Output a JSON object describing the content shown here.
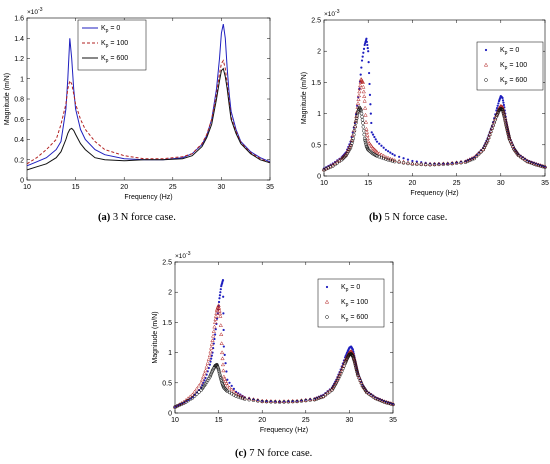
{
  "captions": [
    {
      "letter": "(a)",
      "text": "3 N force case."
    },
    {
      "letter": "(b)",
      "text": "5 N force case."
    },
    {
      "letter": "(c)",
      "text": "7 N force case."
    }
  ],
  "chart_data": [
    {
      "type": "line",
      "title": "",
      "xlabel": "Frequency (Hz)",
      "ylabel": "Magnitude (m/N)",
      "y_multiplier": "×10-3",
      "xlim": [
        10,
        35
      ],
      "ylim": [
        0,
        1.6
      ],
      "xticks": [
        10,
        15,
        20,
        25,
        30,
        35
      ],
      "yticks": [
        0,
        0.2,
        0.4,
        0.6,
        0.8,
        1,
        1.2,
        1.4,
        1.6
      ],
      "grid": false,
      "legend_position": "top-left",
      "series": [
        {
          "name": "Kp = 0",
          "color": "#1f1fbf",
          "style": "solid",
          "x": [
            10,
            11,
            12,
            13,
            13.5,
            14,
            14.2,
            14.4,
            14.6,
            14.8,
            15,
            15.5,
            16,
            17,
            18,
            20,
            22,
            24,
            26,
            27,
            28,
            28.5,
            29,
            29.5,
            29.8,
            30,
            30.2,
            30.4,
            30.6,
            30.8,
            31,
            31.5,
            32,
            33,
            34,
            35
          ],
          "y": [
            0.14,
            0.18,
            0.22,
            0.3,
            0.38,
            0.7,
            1.0,
            1.4,
            1.2,
            0.9,
            0.7,
            0.5,
            0.4,
            0.3,
            0.25,
            0.21,
            0.2,
            0.2,
            0.22,
            0.26,
            0.35,
            0.44,
            0.6,
            0.9,
            1.2,
            1.45,
            1.54,
            1.4,
            1.1,
            0.85,
            0.68,
            0.5,
            0.38,
            0.28,
            0.22,
            0.18
          ]
        },
        {
          "name": "Kp = 100",
          "color": "#b22020",
          "style": "dashed",
          "x": [
            10,
            11,
            12,
            13,
            13.5,
            14,
            14.2,
            14.4,
            14.6,
            14.8,
            15,
            15.5,
            16,
            17,
            18,
            20,
            22,
            24,
            26,
            27,
            28,
            28.5,
            29,
            29.5,
            29.8,
            30,
            30.2,
            30.4,
            30.6,
            30.8,
            31,
            31.5,
            32,
            33,
            34,
            35
          ],
          "y": [
            0.16,
            0.22,
            0.3,
            0.4,
            0.55,
            0.75,
            0.9,
            0.98,
            0.95,
            0.85,
            0.75,
            0.6,
            0.5,
            0.38,
            0.3,
            0.24,
            0.21,
            0.21,
            0.23,
            0.26,
            0.36,
            0.45,
            0.6,
            0.85,
            1.05,
            1.15,
            1.18,
            1.1,
            0.95,
            0.78,
            0.62,
            0.48,
            0.37,
            0.27,
            0.21,
            0.17
          ]
        },
        {
          "name": "Kp = 600",
          "color": "#111111",
          "style": "solid",
          "x": [
            10,
            11,
            12,
            13,
            13.5,
            14,
            14.2,
            14.4,
            14.6,
            14.8,
            15,
            15.5,
            16,
            17,
            18,
            20,
            22,
            24,
            26,
            27,
            28,
            28.5,
            29,
            29.5,
            29.8,
            30,
            30.2,
            30.4,
            30.6,
            30.8,
            31,
            31.5,
            32,
            33,
            34,
            35
          ],
          "y": [
            0.1,
            0.13,
            0.16,
            0.22,
            0.28,
            0.4,
            0.46,
            0.5,
            0.51,
            0.49,
            0.45,
            0.36,
            0.3,
            0.22,
            0.2,
            0.19,
            0.2,
            0.2,
            0.21,
            0.24,
            0.33,
            0.42,
            0.55,
            0.8,
            0.98,
            1.08,
            1.1,
            1.02,
            0.9,
            0.74,
            0.6,
            0.46,
            0.36,
            0.26,
            0.2,
            0.17
          ]
        }
      ]
    },
    {
      "type": "scatter",
      "title": "",
      "xlabel": "Frequency (Hz)",
      "ylabel": "Magnitude (m/N)",
      "y_multiplier": "×10-3",
      "xlim": [
        10,
        35
      ],
      "ylim": [
        0,
        2.5
      ],
      "xticks": [
        10,
        15,
        20,
        25,
        30,
        35
      ],
      "yticks": [
        0,
        0.5,
        1,
        1.5,
        2,
        2.5
      ],
      "grid": false,
      "legend_position": "top-right",
      "series": [
        {
          "name": "Kp = 0",
          "color": "#1f1fbf",
          "marker": "dot",
          "x": [
            10,
            11,
            12,
            12.5,
            13,
            13.5,
            14,
            14.3,
            14.6,
            14.8,
            15,
            15.2,
            15.4,
            16,
            17,
            18,
            20,
            22,
            24,
            26,
            27,
            28,
            28.5,
            29,
            29.5,
            29.8,
            30,
            30.2,
            30.4,
            30.6,
            30.8,
            31,
            31.5,
            32,
            33,
            34,
            35
          ],
          "y": [
            0.12,
            0.2,
            0.3,
            0.38,
            0.55,
            0.85,
            1.4,
            1.85,
            2.1,
            2.2,
            2.0,
            1.3,
            0.7,
            0.55,
            0.42,
            0.33,
            0.24,
            0.2,
            0.2,
            0.24,
            0.3,
            0.45,
            0.6,
            0.8,
            1.05,
            1.2,
            1.28,
            1.25,
            1.1,
            0.9,
            0.75,
            0.62,
            0.45,
            0.35,
            0.25,
            0.2,
            0.15
          ]
        },
        {
          "name": "Kp = 100",
          "color": "#b22020",
          "marker": "triangle",
          "x": [
            10,
            11,
            12,
            12.5,
            13,
            13.5,
            13.8,
            14,
            14.2,
            14.4,
            14.6,
            14.8,
            15,
            15.5,
            16,
            17,
            18,
            20,
            22,
            24,
            26,
            27,
            28,
            28.5,
            29,
            29.5,
            29.8,
            30,
            30.2,
            30.4,
            30.6,
            30.8,
            31,
            31.5,
            32,
            33,
            34,
            35
          ],
          "y": [
            0.1,
            0.18,
            0.28,
            0.35,
            0.5,
            0.8,
            1.1,
            1.35,
            1.55,
            1.5,
            1.2,
            0.75,
            0.55,
            0.45,
            0.38,
            0.3,
            0.25,
            0.2,
            0.19,
            0.2,
            0.23,
            0.3,
            0.43,
            0.57,
            0.77,
            0.97,
            1.08,
            1.12,
            1.1,
            0.98,
            0.85,
            0.72,
            0.6,
            0.44,
            0.34,
            0.24,
            0.19,
            0.15
          ]
        },
        {
          "name": "Kp = 600",
          "color": "#111111",
          "marker": "circle",
          "x": [
            10,
            11,
            12,
            12.5,
            13,
            13.3,
            13.6,
            13.8,
            14,
            14.2,
            14.4,
            14.6,
            14.8,
            15,
            15.5,
            16,
            17,
            18,
            20,
            22,
            24,
            26,
            27,
            28,
            28.5,
            29,
            29.5,
            29.8,
            30,
            30.2,
            30.4,
            30.6,
            30.8,
            31,
            31.5,
            32,
            33,
            34,
            35
          ],
          "y": [
            0.1,
            0.16,
            0.26,
            0.33,
            0.45,
            0.6,
            0.85,
            1.0,
            1.1,
            1.05,
            0.85,
            0.6,
            0.48,
            0.42,
            0.36,
            0.32,
            0.27,
            0.23,
            0.19,
            0.18,
            0.19,
            0.22,
            0.28,
            0.42,
            0.56,
            0.76,
            0.95,
            1.05,
            1.08,
            1.06,
            0.95,
            0.82,
            0.7,
            0.58,
            0.43,
            0.33,
            0.23,
            0.18,
            0.14
          ]
        }
      ]
    },
    {
      "type": "scatter",
      "title": "",
      "xlabel": "Frequency (Hz)",
      "ylabel": "Magnitude (m/N)",
      "y_multiplier": "×10-3",
      "xlim": [
        10,
        35
      ],
      "ylim": [
        0,
        2.5
      ],
      "xticks": [
        10,
        15,
        20,
        25,
        30,
        35
      ],
      "yticks": [
        0,
        0.5,
        1,
        1.5,
        2,
        2.5
      ],
      "grid": false,
      "legend_position": "top-right",
      "series": [
        {
          "name": "Kp = 0",
          "color": "#1f1fbf",
          "marker": "dot",
          "x": [
            10,
            11,
            12,
            13,
            13.5,
            14,
            14.3,
            14.6,
            14.9,
            15.1,
            15.3,
            15.5,
            15.6,
            16,
            17,
            18,
            20,
            22,
            24,
            26,
            27,
            28,
            28.5,
            29,
            29.5,
            29.8,
            30,
            30.2,
            30.4,
            30.6,
            30.8,
            31,
            31.5,
            32,
            33,
            34,
            35
          ],
          "y": [
            0.1,
            0.17,
            0.26,
            0.42,
            0.58,
            0.8,
            1.0,
            1.3,
            1.65,
            1.9,
            2.1,
            2.2,
            1.1,
            0.55,
            0.35,
            0.26,
            0.2,
            0.19,
            0.2,
            0.24,
            0.3,
            0.42,
            0.55,
            0.72,
            0.92,
            1.02,
            1.08,
            1.1,
            1.05,
            0.92,
            0.78,
            0.65,
            0.47,
            0.36,
            0.26,
            0.2,
            0.15
          ]
        },
        {
          "name": "Kp = 100",
          "color": "#b22020",
          "marker": "triangle",
          "x": [
            10,
            11,
            12,
            13,
            13.5,
            14,
            14.3,
            14.6,
            14.8,
            15,
            15.2,
            15.4,
            15.6,
            16,
            17,
            18,
            20,
            22,
            24,
            26,
            27,
            28,
            28.5,
            29,
            29.5,
            29.8,
            30,
            30.2,
            30.4,
            30.6,
            30.8,
            31,
            31.5,
            32,
            33,
            34,
            35
          ],
          "y": [
            0.1,
            0.18,
            0.3,
            0.5,
            0.7,
            0.95,
            1.2,
            1.5,
            1.7,
            1.78,
            1.6,
            1.0,
            0.6,
            0.45,
            0.32,
            0.25,
            0.2,
            0.19,
            0.2,
            0.23,
            0.28,
            0.4,
            0.52,
            0.68,
            0.86,
            0.95,
            1.0,
            1.02,
            0.98,
            0.88,
            0.75,
            0.63,
            0.46,
            0.35,
            0.25,
            0.19,
            0.15
          ]
        },
        {
          "name": "Kp = 600",
          "color": "#111111",
          "marker": "circle",
          "x": [
            10,
            11,
            12,
            13,
            13.5,
            14,
            14.3,
            14.6,
            14.8,
            15,
            15.2,
            15.4,
            15.6,
            16,
            17,
            18,
            20,
            22,
            24,
            26,
            27,
            28,
            28.5,
            29,
            29.5,
            29.8,
            30,
            30.2,
            30.4,
            30.6,
            30.8,
            31,
            31.5,
            32,
            33,
            34,
            35
          ],
          "y": [
            0.1,
            0.16,
            0.25,
            0.38,
            0.48,
            0.6,
            0.7,
            0.78,
            0.8,
            0.72,
            0.6,
            0.5,
            0.42,
            0.36,
            0.28,
            0.23,
            0.19,
            0.18,
            0.19,
            0.22,
            0.27,
            0.38,
            0.5,
            0.65,
            0.82,
            0.92,
            0.97,
            0.98,
            0.94,
            0.85,
            0.73,
            0.62,
            0.45,
            0.34,
            0.24,
            0.18,
            0.14
          ]
        }
      ]
    }
  ]
}
